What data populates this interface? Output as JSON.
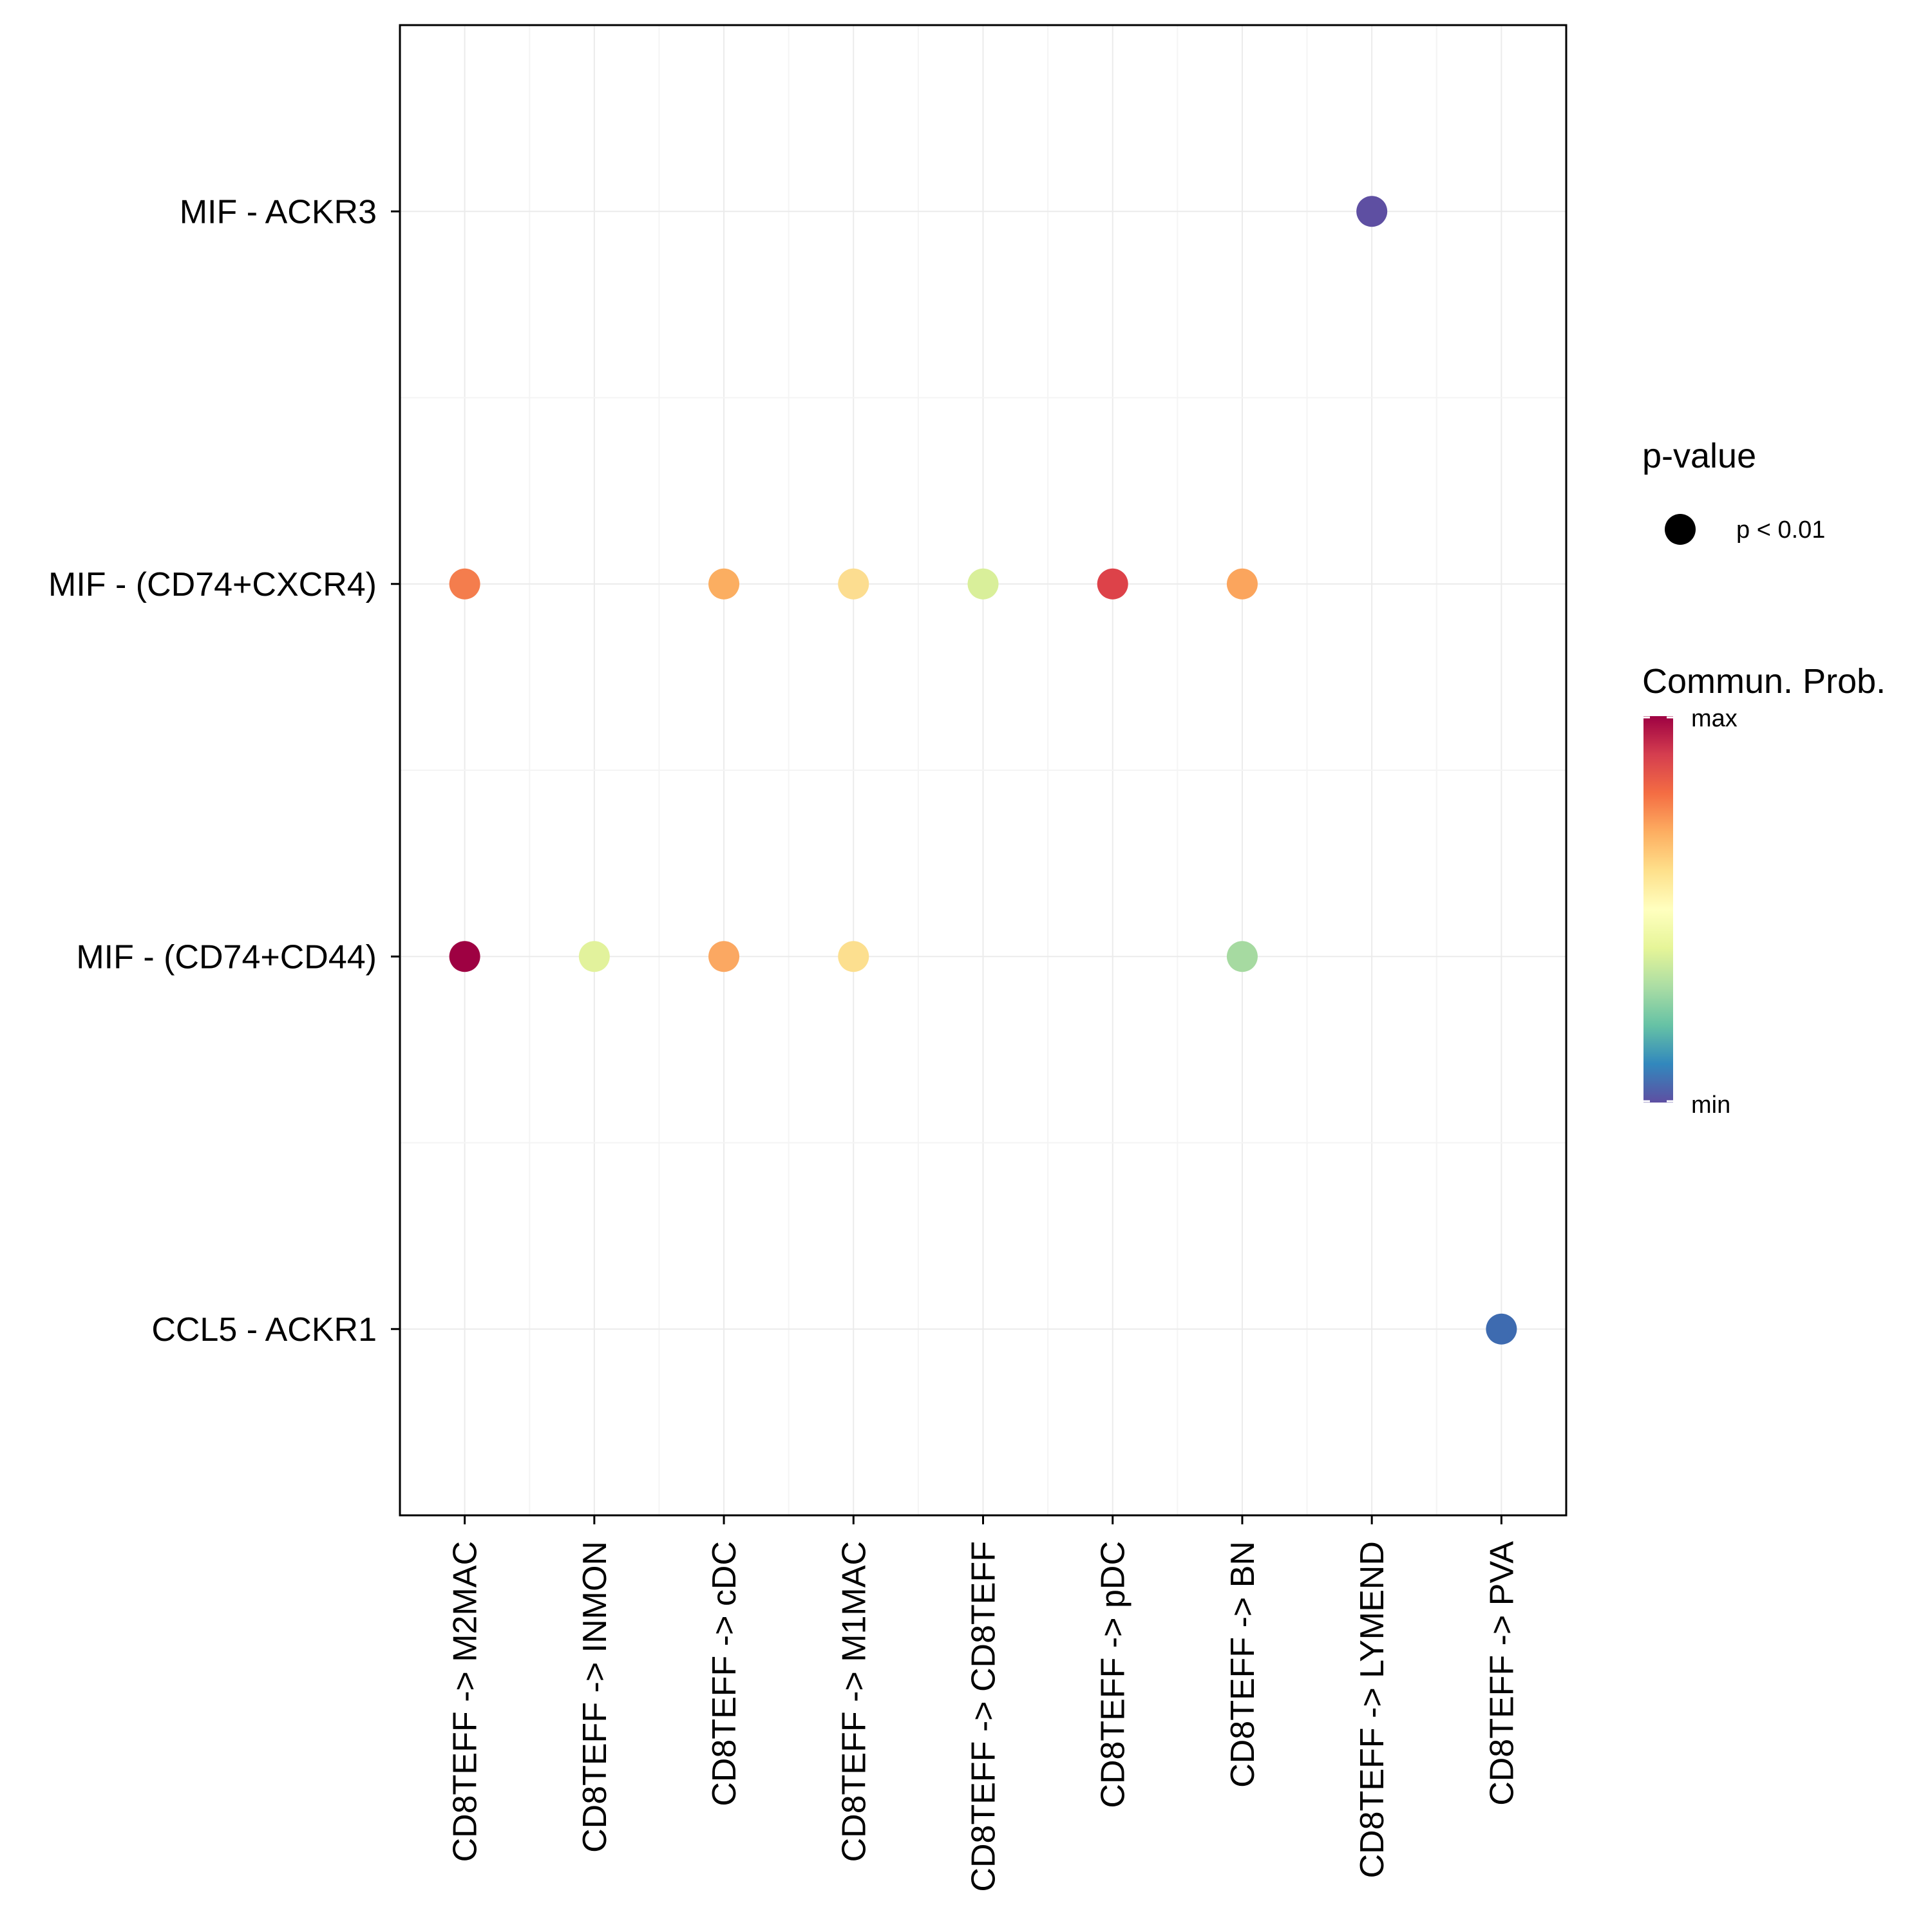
{
  "chart_data": {
    "type": "dot",
    "title": "",
    "xlabel": "",
    "ylabel": "",
    "grid": true,
    "x_categories": [
      "CD8TEFF -> M2MAC",
      "CD8TEFF -> INMON",
      "CD8TEFF -> cDC",
      "CD8TEFF -> M1MAC",
      "CD8TEFF -> CD8TEFF",
      "CD8TEFF -> pDC",
      "CD8TEFF -> BN",
      "CD8TEFF -> LYMEND",
      "CD8TEFF -> PVA"
    ],
    "y_categories": [
      "MIF - ACKR3",
      "MIF - (CD74+CXCR4)",
      "MIF - (CD74+CD44)",
      "CCL5 - ACKR1"
    ],
    "points": [
      {
        "x": "CD8TEFF -> LYMEND",
        "y": "MIF - ACKR3",
        "prob": 0.02,
        "color": "#5E4FA2"
      },
      {
        "x": "CD8TEFF -> M2MAC",
        "y": "MIF - (CD74+CXCR4)",
        "prob": 0.78,
        "color": "#F47D4D"
      },
      {
        "x": "CD8TEFF -> cDC",
        "y": "MIF - (CD74+CXCR4)",
        "prob": 0.68,
        "color": "#FBAE61"
      },
      {
        "x": "CD8TEFF -> M1MAC",
        "y": "MIF - (CD74+CXCR4)",
        "prob": 0.58,
        "color": "#FCDD90"
      },
      {
        "x": "CD8TEFF -> CD8TEFF",
        "y": "MIF - (CD74+CXCR4)",
        "prob": 0.45,
        "color": "#D9EF9A"
      },
      {
        "x": "CD8TEFF -> pDC",
        "y": "MIF - (CD74+CXCR4)",
        "prob": 0.9,
        "color": "#DD4249"
      },
      {
        "x": "CD8TEFF -> BN",
        "y": "MIF - (CD74+CXCR4)",
        "prob": 0.68,
        "color": "#FBA55D"
      },
      {
        "x": "CD8TEFF -> M2MAC",
        "y": "MIF - (CD74+CD44)",
        "prob": 1.0,
        "color": "#9E0142"
      },
      {
        "x": "CD8TEFF -> INMON",
        "y": "MIF - (CD74+CD44)",
        "prob": 0.47,
        "color": "#E2F29C"
      },
      {
        "x": "CD8TEFF -> cDC",
        "y": "MIF - (CD74+CD44)",
        "prob": 0.68,
        "color": "#FBA862"
      },
      {
        "x": "CD8TEFF -> M1MAC",
        "y": "MIF - (CD74+CD44)",
        "prob": 0.58,
        "color": "#FCDF8F"
      },
      {
        "x": "CD8TEFF -> BN",
        "y": "MIF - (CD74+CD44)",
        "prob": 0.4,
        "color": "#A6DAA1"
      },
      {
        "x": "CD8TEFF -> PVA",
        "y": "CCL5 - ACKR1",
        "prob": 0.08,
        "color": "#3E6BB0"
      }
    ],
    "legend": {
      "pvalue_title": "p-value",
      "pvalue_label": "p < 0.01",
      "pvalue_color": "#000000",
      "colorbar_title": "Commun. Prob.",
      "colorbar_max_label": "max",
      "colorbar_min_label": "min",
      "colorbar_colors": [
        "#9E0142",
        "#D53E4F",
        "#F46D43",
        "#FDAE61",
        "#FEE08B",
        "#FFFFBF",
        "#E6F598",
        "#ABDDA4",
        "#66C2A5",
        "#3288BD",
        "#5E4FA2"
      ]
    }
  }
}
